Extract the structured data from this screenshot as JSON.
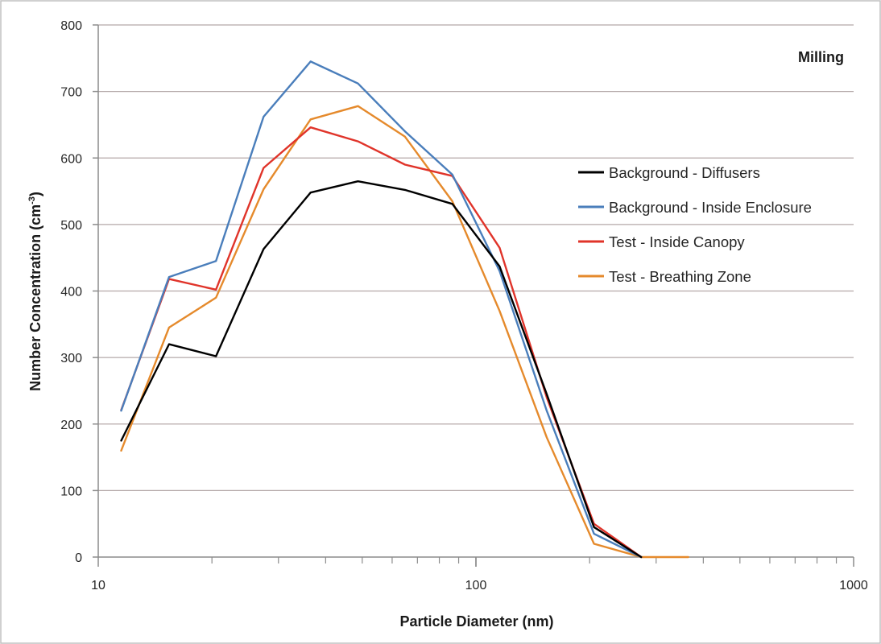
{
  "chart_data": {
    "type": "line",
    "title": "Milling",
    "xlabel": "Particle Diameter (nm)",
    "ylabel": "Number Concentration (cm",
    "ylabel_sup": "-3",
    "ylabel_end": ")",
    "x_scale": "log",
    "xlim": [
      10,
      1000
    ],
    "ylim": [
      0,
      800
    ],
    "x_tick_labels": [
      "10",
      "100",
      "1000"
    ],
    "x_tick_values": [
      10,
      100,
      1000
    ],
    "y_tick_labels": [
      "0",
      "100",
      "200",
      "300",
      "400",
      "500",
      "600",
      "700",
      "800"
    ],
    "y_tick_values": [
      0,
      100,
      200,
      300,
      400,
      500,
      600,
      700,
      800
    ],
    "grid": "horizontal",
    "legend_position": "right",
    "x": [
      11.5,
      15.4,
      20.5,
      27.4,
      36.5,
      48.7,
      64.9,
      86.6,
      115.5,
      154.0,
      205.4,
      273.8,
      365.0
    ],
    "series": [
      {
        "name": "Background - Diffusers",
        "color": "#000000",
        "values": [
          175,
          320,
          302,
          463,
          548,
          565,
          552,
          531,
          437,
          245,
          45,
          0,
          null
        ]
      },
      {
        "name": "Background - Inside Enclosure",
        "color": "#4a7ebb",
        "values": [
          220,
          421,
          445,
          662,
          745,
          712,
          640,
          575,
          430,
          220,
          35,
          0,
          null
        ]
      },
      {
        "name": "Test - Inside Canopy",
        "color": "#e0342a",
        "values": [
          221,
          418,
          402,
          585,
          646,
          625,
          590,
          573,
          465,
          240,
          50,
          0,
          null
        ]
      },
      {
        "name": "Test - Breathing Zone",
        "color": "#e58a2c",
        "values": [
          160,
          345,
          390,
          553,
          658,
          678,
          632,
          535,
          370,
          180,
          20,
          0,
          0
        ]
      }
    ]
  }
}
